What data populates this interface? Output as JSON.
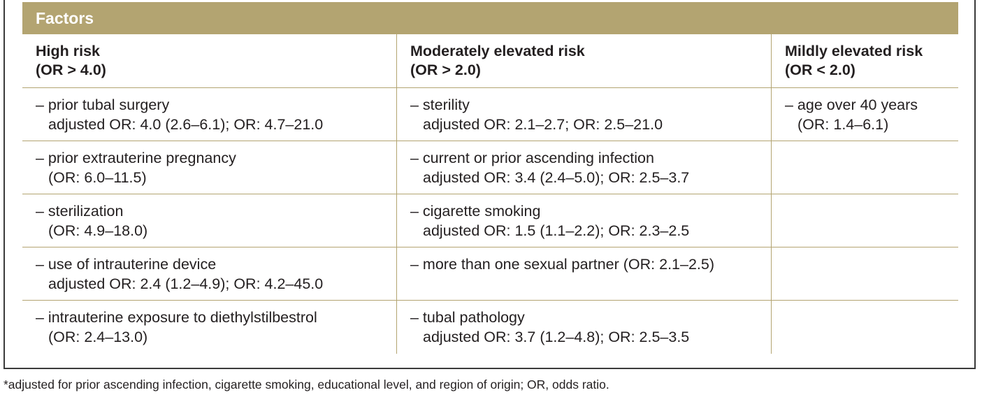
{
  "table": {
    "title": "Factors",
    "columns": [
      {
        "label_line1": "High risk",
        "label_line2": "(OR > 4.0)"
      },
      {
        "label_line1": "Moderately elevated risk",
        "label_line2": "(OR > 2.0)"
      },
      {
        "label_line1": "Mildly elevated risk",
        "label_line2": "(OR < 2.0)"
      }
    ],
    "rows": [
      [
        {
          "line1": "– prior tubal surgery",
          "line2": "adjusted OR: 4.0 (2.6–6.1); OR: 4.7–21.0"
        },
        {
          "line1": "– sterility",
          "line2": "adjusted OR: 2.1–2.7; OR: 2.5–21.0"
        },
        {
          "line1": "– age over 40 years",
          "line2": "(OR: 1.4–6.1)"
        }
      ],
      [
        {
          "line1": "– prior extrauterine pregnancy",
          "line2": "(OR: 6.0–11.5)"
        },
        {
          "line1": "– current or prior ascending infection",
          "line2": "adjusted OR: 3.4 (2.4–5.0); OR: 2.5–3.7"
        },
        {
          "line1": "",
          "line2": ""
        }
      ],
      [
        {
          "line1": "– sterilization",
          "line2": "(OR: 4.9–18.0)"
        },
        {
          "line1": "– cigarette smoking",
          "line2": "adjusted OR: 1.5 (1.1–2.2); OR: 2.3–2.5"
        },
        {
          "line1": "",
          "line2": ""
        }
      ],
      [
        {
          "line1": "– use of intrauterine device",
          "line2": "adjusted OR: 2.4 (1.2–4.9); OR: 4.2–45.0"
        },
        {
          "line1": "– more than one sexual partner (OR: 2.1–2.5)",
          "line2": ""
        },
        {
          "line1": "",
          "line2": ""
        }
      ],
      [
        {
          "line1": "– intrauterine exposure to diethylstilbestrol",
          "line2": "(OR: 2.4–13.0)"
        },
        {
          "line1": "– tubal pathology",
          "line2": "adjusted OR: 3.7 (1.2–4.8); OR: 2.5–3.5"
        },
        {
          "line1": "",
          "line2": ""
        }
      ]
    ]
  },
  "footnote": "*adjusted for prior ascending infection, cigarette smoking, educational level, and region of origin; OR, odds ratio.",
  "colors": {
    "header_background": "#b3a471",
    "header_text": "#ffffff",
    "body_text": "#231f20",
    "frame_border": "#3a3a3a"
  }
}
